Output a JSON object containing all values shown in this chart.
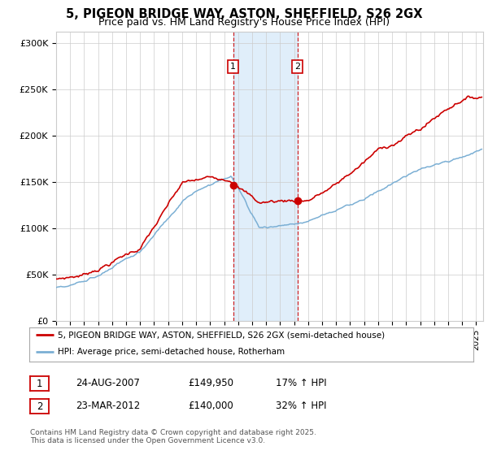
{
  "title": "5, PIGEON BRIDGE WAY, ASTON, SHEFFIELD, S26 2GX",
  "subtitle": "Price paid vs. HM Land Registry's House Price Index (HPI)",
  "ylabel_ticks": [
    "£0",
    "£50K",
    "£100K",
    "£150K",
    "£200K",
    "£250K",
    "£300K"
  ],
  "ytick_values": [
    0,
    50000,
    100000,
    150000,
    200000,
    250000,
    300000
  ],
  "ylim": [
    0,
    312000
  ],
  "xlim_start": 1995.0,
  "xlim_end": 2025.5,
  "property_color": "#cc0000",
  "hpi_color": "#7bafd4",
  "sale1_x": 2007.65,
  "sale1_y": 149950,
  "sale2_x": 2012.23,
  "sale2_y": 140000,
  "shade_x1": 2007.65,
  "shade_x2": 2012.23,
  "legend_property": "5, PIGEON BRIDGE WAY, ASTON, SHEFFIELD, S26 2GX (semi-detached house)",
  "legend_hpi": "HPI: Average price, semi-detached house, Rotherham",
  "note1_label": "1",
  "note1_date": "24-AUG-2007",
  "note1_price": "£149,950",
  "note1_hpi": "17% ↑ HPI",
  "note2_label": "2",
  "note2_date": "23-MAR-2012",
  "note2_price": "£140,000",
  "note2_hpi": "32% ↑ HPI",
  "footer": "Contains HM Land Registry data © Crown copyright and database right 2025.\nThis data is licensed under the Open Government Licence v3.0.",
  "background_color": "#ffffff",
  "plot_bg_color": "#ffffff",
  "grid_color": "#cccccc",
  "title_fontsize": 10.5,
  "subtitle_fontsize": 9
}
